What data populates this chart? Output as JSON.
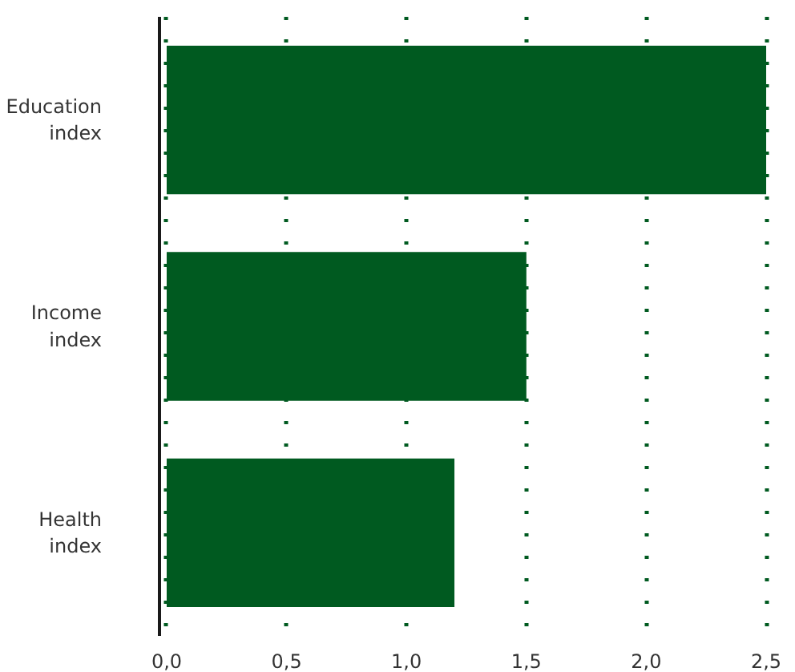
{
  "chart_data": {
    "type": "bar",
    "orientation": "horizontal",
    "categories": [
      "Education index",
      "Income index",
      "Health index"
    ],
    "values": [
      2.5,
      1.5,
      1.2
    ],
    "color": "#005a20",
    "xlim": [
      0,
      2.5
    ],
    "xticks": [
      {
        "value": 0,
        "label": "0,0"
      },
      {
        "value": 0.5,
        "label": "0,5"
      },
      {
        "value": 1,
        "label": "1,0"
      },
      {
        "value": 1.5,
        "label": "1,5"
      },
      {
        "value": 2,
        "label": "2,0"
      },
      {
        "value": 2.5,
        "label": "2,5"
      }
    ],
    "grid": "x"
  }
}
